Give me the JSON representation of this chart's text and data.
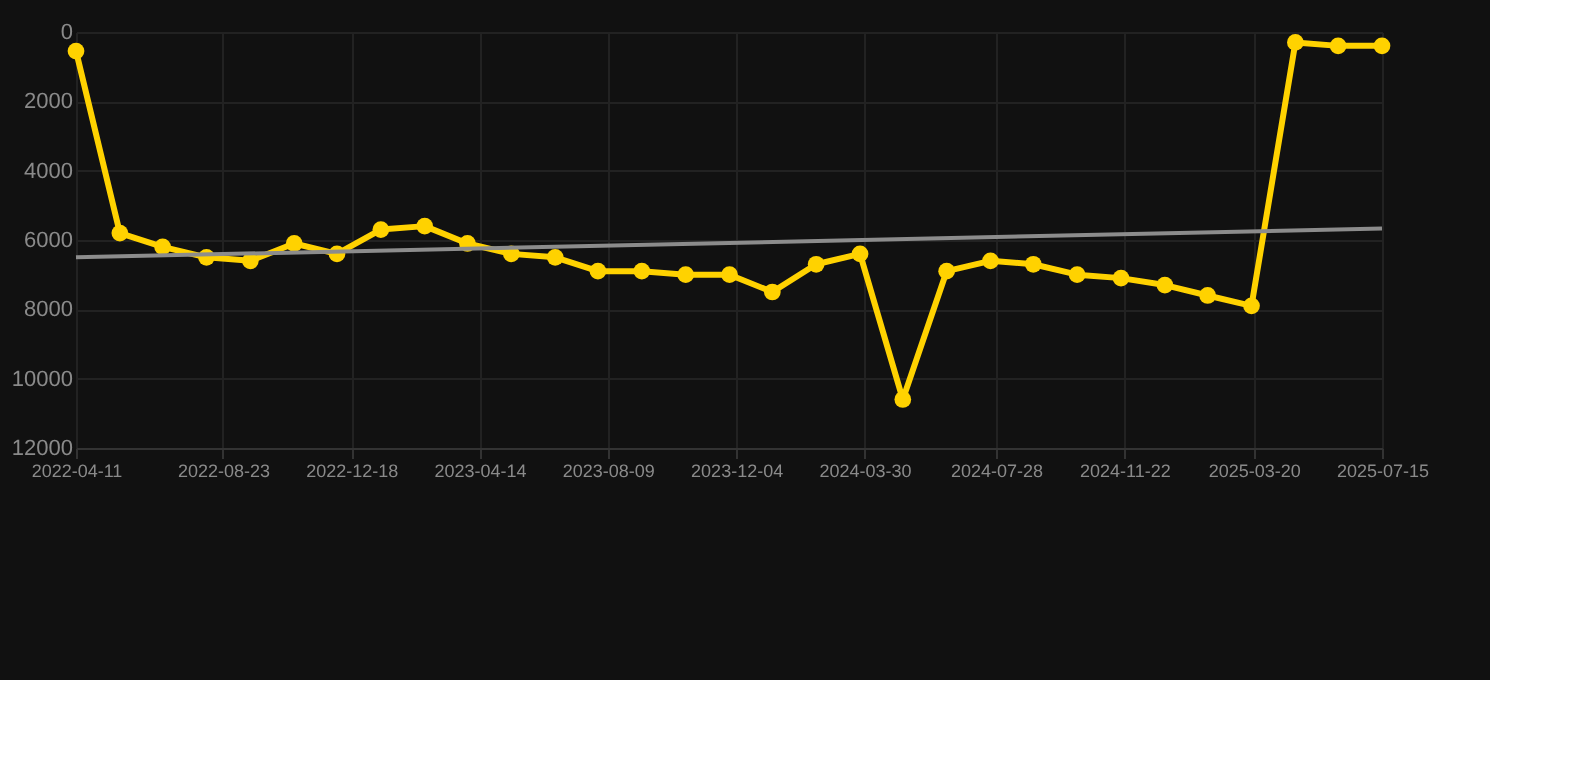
{
  "chart_data": {
    "type": "line",
    "x": [
      "2022-04-11",
      "2022-05-21",
      "2022-06-29",
      "2022-08-08",
      "2022-09-17",
      "2022-10-27",
      "2022-12-05",
      "2023-01-14",
      "2023-02-23",
      "2023-04-03",
      "2023-05-13",
      "2023-06-22",
      "2023-07-31",
      "2023-09-09",
      "2023-10-19",
      "2023-11-28",
      "2024-01-06",
      "2024-02-15",
      "2024-03-26",
      "2024-05-04",
      "2024-06-13",
      "2024-07-23",
      "2024-08-31",
      "2024-10-10",
      "2024-11-19",
      "2024-12-29",
      "2025-02-06",
      "2025-03-18",
      "2025-04-27",
      "2025-06-05",
      "2025-07-15"
    ],
    "series": [
      {
        "color": "#ffd200",
        "marker": "circle",
        "values": [
          550,
          5800,
          6200,
          6500,
          6600,
          6100,
          6400,
          5700,
          5600,
          6100,
          6400,
          6500,
          6900,
          6900,
          7000,
          7000,
          7500,
          6700,
          6400,
          10600,
          6900,
          6600,
          6700,
          7000,
          7100,
          7300,
          7600,
          7900,
          300,
          400,
          400
        ]
      },
      {
        "type": "line",
        "color": "#8c8c8c",
        "marker": "none",
        "x": [
          "2022-04-11",
          "2025-07-15"
        ],
        "values": [
          6500,
          5670
        ]
      }
    ],
    "xlim": [
      "2022-04-11",
      "2025-07-15"
    ],
    "xticks": [
      "2022-04-11",
      "2022-08-23",
      "2022-12-18",
      "2023-04-14",
      "2023-08-09",
      "2023-12-04",
      "2024-03-30",
      "2024-07-28",
      "2024-11-22",
      "2025-03-20",
      "2025-07-15"
    ],
    "ylim": [
      12000,
      0
    ],
    "yticks": [
      0,
      2000,
      4000,
      6000,
      8000,
      10000,
      12000
    ],
    "grid": true,
    "line_style": "solid"
  }
}
